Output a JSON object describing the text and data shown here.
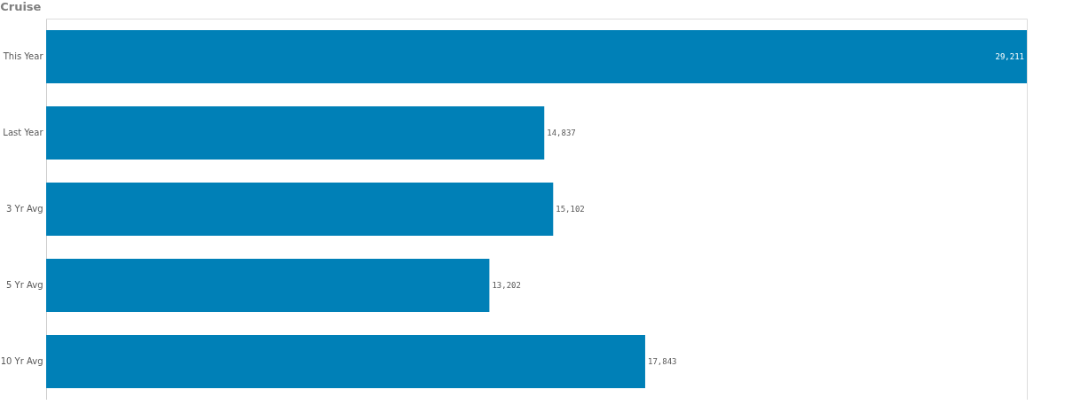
{
  "chart_data": {
    "type": "bar",
    "orientation": "horizontal",
    "title": "Cruise",
    "categories": [
      "This Year",
      "Last Year",
      "3 Yr Avg",
      "5 Yr Avg",
      "10 Yr Avg"
    ],
    "values": [
      29211,
      14837,
      15102,
      13202,
      17843
    ],
    "value_labels": [
      "29,211",
      "14,837",
      "15,102",
      "13,202",
      "17,843"
    ],
    "color": "#0080b7",
    "grid": false
  }
}
